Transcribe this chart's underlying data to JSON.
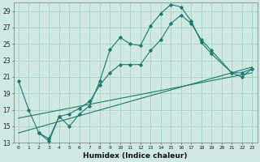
{
  "xlabel": "Humidex (Indice chaleur)",
  "bg_color": "#cfe8e2",
  "grid_color": "#a8cfc7",
  "line_color": "#1a7a6e",
  "xlim": [
    -0.5,
    23.5
  ],
  "ylim": [
    13,
    30
  ],
  "yticks": [
    13,
    15,
    17,
    19,
    21,
    23,
    25,
    27,
    29
  ],
  "xticks": [
    0,
    1,
    2,
    3,
    4,
    5,
    6,
    7,
    8,
    9,
    10,
    11,
    12,
    13,
    14,
    15,
    16,
    17,
    18,
    19,
    20,
    21,
    22,
    23
  ],
  "line1_x": [
    0,
    1,
    2,
    3,
    4,
    5,
    6,
    7,
    8,
    9,
    10,
    11,
    12,
    13,
    14,
    15,
    16,
    17,
    18,
    19,
    21,
    22,
    23
  ],
  "line1_y": [
    20.5,
    17.0,
    14.2,
    13.2,
    16.2,
    15.0,
    16.5,
    17.5,
    20.5,
    24.3,
    25.8,
    25.0,
    24.8,
    27.2,
    28.7,
    29.8,
    29.5,
    27.8,
    25.2,
    23.8,
    21.5,
    21.0,
    22.0
  ],
  "line2_x": [
    2,
    3,
    4,
    5,
    6,
    7,
    8,
    9,
    10,
    11,
    12,
    13,
    14,
    15,
    16,
    17,
    18,
    19,
    21,
    22,
    23
  ],
  "line2_y": [
    14.2,
    13.5,
    16.2,
    16.5,
    17.2,
    18.0,
    20.0,
    21.5,
    22.5,
    22.5,
    22.5,
    24.2,
    25.5,
    27.5,
    28.5,
    27.5,
    25.5,
    24.2,
    21.5,
    21.5,
    22.0
  ],
  "line3_x": [
    0,
    23
  ],
  "line3_y": [
    14.2,
    22.2
  ],
  "line4_x": [
    0,
    23
  ],
  "line4_y": [
    16.0,
    21.5
  ]
}
